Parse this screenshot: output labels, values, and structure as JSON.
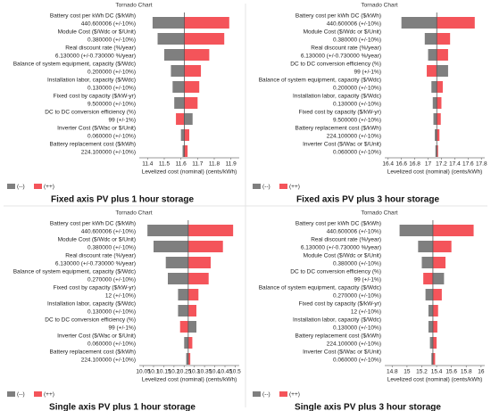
{
  "chart_data": [
    {
      "type": "tornado",
      "title": "Tornado Chart",
      "caption": "Fixed axis PV plus 1 hour storage",
      "categories": [
        "Battery cost per kWh DC ($/kWh)",
        "Module Cost ($/Wdc or $/Unit)",
        "Real discount rate (%/year)",
        "Balance of system equipment, capacity ($/Wdc)",
        "Installation labor, capacity ($/Wdc)",
        "Fixed cost by capacity ($/kW-yr)",
        "DC to DC conversion efficiency (%)",
        "Inverter Cost ($/Wac or $/Unit)",
        "Battery replacement cost ($/kWh)"
      ],
      "base_labels": [
        "440.600006 (+/-10%)",
        "0.380000 (+/-10%)",
        "6.130000 (+/-0.730000 %/year)",
        "0.200000 (+/-10%)",
        "0.130000 (+/-10%)",
        "9.500000 (+/-10%)",
        "99 (+/-1%)",
        "0.060000 (+/-10%)",
        "224.100000 (+/-10%)"
      ],
      "base": 11.62,
      "series": [
        {
          "name": "(--)",
          "color": "#7f7f7f",
          "values": [
            11.43,
            11.46,
            11.5,
            11.54,
            11.55,
            11.56,
            11.67,
            11.6,
            11.61
          ]
        },
        {
          "name": "(++)",
          "color": "#f4545a",
          "values": [
            11.89,
            11.86,
            11.77,
            11.72,
            11.71,
            11.7,
            11.57,
            11.65,
            11.64
          ]
        }
      ],
      "xlim": [
        11.35,
        11.95
      ],
      "xticks": [
        11.4,
        11.5,
        11.6,
        11.7,
        11.8,
        11.9
      ],
      "xlabel": "Levelized cost (nominal) (cents/kWh)"
    },
    {
      "type": "tornado",
      "title": "Tornado Chart",
      "caption": "Fixed axis PV plus 3 hour storage",
      "categories": [
        "Battery cost per kWh DC ($/kWh)",
        "Module Cost ($/Wdc or $/Unit)",
        "Real discount rate (%/year)",
        "DC to DC conversion efficiency (%)",
        "Balance of system equipment, capacity ($/Wdc)",
        "Installation labor, capacity ($/Wdc)",
        "Fixed cost by capacity ($/kW-yr)",
        "Battery replacement cost ($/kWh)",
        "Inverter Cost ($/Wac or $/Unit)"
      ],
      "base_labels": [
        "440.600006 (+/-10%)",
        "0.380000 (+/-10%)",
        "6.130000 (+/-0.730000 %/year)",
        "99 (+/-1%)",
        "0.200000 (+/-10%)",
        "0.130000 (+/-10%)",
        "9.500000 (+/-10%)",
        "224.100000 (+/-10%)",
        "0.060000 (+/-10%)"
      ],
      "base": 17.13,
      "series": [
        {
          "name": "(--)",
          "color": "#7f7f7f",
          "values": [
            16.6,
            16.95,
            17.0,
            17.3,
            17.05,
            17.07,
            17.08,
            17.1,
            17.11
          ]
        },
        {
          "name": "(++)",
          "color": "#f4545a",
          "values": [
            17.7,
            17.33,
            17.3,
            16.98,
            17.22,
            17.2,
            17.19,
            17.17,
            17.15
          ]
        }
      ],
      "xlim": [
        16.35,
        17.85
      ],
      "xticks": [
        16.4,
        16.6,
        16.8,
        17,
        17.2,
        17.4,
        17.6,
        17.8
      ],
      "xlabel": "Levelized cost (nominal) (cents/kWh)"
    },
    {
      "type": "tornado",
      "title": "Tornado Chart",
      "caption": "Single axis PV plus 1 hour storage",
      "categories": [
        "Battery cost per kWh DC ($/kWh)",
        "Module Cost ($/Wdc or $/Unit)",
        "Real discount rate (%/year)",
        "Balance of system equipment, capacity ($/Wdc)",
        "Fixed cost by capacity ($/kW-yr)",
        "Installation labor, capacity ($/Wdc)",
        "DC to DC conversion efficiency (%)",
        "Inverter Cost ($/Wac or $/Unit)",
        "Battery replacement cost ($/kWh)"
      ],
      "base_labels": [
        "440.600006 (+/-10%)",
        "0.380000 (+/-10%)",
        "6.130000 (+/-0.730000 %/year)",
        "0.270000 (+/-10%)",
        "12 (+/-10%)",
        "0.130000 (+/-10%)",
        "99 (+/-1%)",
        "0.060000 (+/-10%)",
        "224.100000 (+/-10%)"
      ],
      "base": 10.27,
      "series": [
        {
          "name": "(--)",
          "color": "#7f7f7f",
          "values": [
            10.07,
            10.1,
            10.16,
            10.17,
            10.22,
            10.22,
            10.31,
            10.25,
            10.26
          ]
        },
        {
          "name": "(++)",
          "color": "#f4545a",
          "values": [
            10.49,
            10.44,
            10.38,
            10.37,
            10.32,
            10.31,
            10.23,
            10.29,
            10.28
          ]
        }
      ],
      "xlim": [
        10.03,
        10.52
      ],
      "xticks": [
        10.05,
        10.1,
        10.15,
        10.2,
        10.25,
        10.3,
        10.35,
        10.4,
        10.45,
        10.5
      ],
      "xlabel": "Levelized cost (nominal) (cents/kWh)"
    },
    {
      "type": "tornado",
      "title": "Tornado Chart",
      "caption": "Single axis PV plus 3 hour storage",
      "categories": [
        "Battery cost per kWh DC ($/kWh)",
        "Real discount rate (%/year)",
        "Module Cost ($/Wdc or $/Unit)",
        "DC to DC conversion efficiency (%)",
        "Balance of system equipment, capacity ($/Wdc)",
        "Fixed cost by capacity ($/kW-yr)",
        "Installation labor, capacity ($/Wdc)",
        "Battery replacement cost ($/kWh)",
        "Inverter Cost ($/Wac or $/Unit)"
      ],
      "base_labels": [
        "440.600006 (+/-10%)",
        "6.130000 (+/-0.730000 %/year)",
        "0.380000 (+/-10%)",
        "99 (+/-1%)",
        "0.270000 (+/-10%)",
        "12 (+/-10%)",
        "0.130000 (+/-10%)",
        "224.100000 (+/-10%)",
        "0.060000 (+/-10%)"
      ],
      "base": 15.35,
      "series": [
        {
          "name": "(--)",
          "color": "#7f7f7f",
          "values": [
            14.9,
            15.15,
            15.2,
            15.5,
            15.25,
            15.29,
            15.29,
            15.31,
            15.33
          ]
        },
        {
          "name": "(++)",
          "color": "#f4545a",
          "values": [
            15.9,
            15.6,
            15.52,
            15.22,
            15.47,
            15.42,
            15.41,
            15.4,
            15.38
          ]
        }
      ],
      "xlim": [
        14.7,
        16.05
      ],
      "xticks": [
        14.8,
        15,
        15.2,
        15.4,
        15.6,
        15.8,
        16
      ],
      "xlabel": "Levelized cost (nominal) (cents/kWh)"
    }
  ]
}
